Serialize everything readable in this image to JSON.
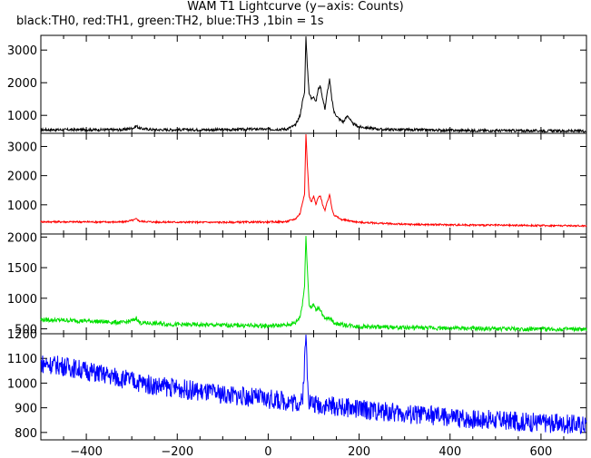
{
  "chart_data": {
    "type": "line",
    "title": "WAM T1 Lightcurve (y−axis: Counts)",
    "subtitle": "black:TH0, red:TH1, green:TH2, blue:TH3 ,1bin = 1s",
    "xlim": [
      -500,
      700
    ],
    "x_ticks": [
      -400,
      -200,
      0,
      200,
      400,
      600
    ],
    "x_tick_labels": [
      "−400",
      "−200",
      "0",
      "200",
      "400",
      "600"
    ],
    "panels": [
      {
        "series": "TH0",
        "color": "#000000",
        "ylim": [
          450,
          3450
        ],
        "y_ticks": [
          1000,
          2000,
          3000
        ],
        "y_tick_labels": [
          "1000",
          "2000",
          "3000"
        ],
        "points": [
          [
            -500,
            560
          ],
          [
            -320,
            560
          ],
          [
            -295,
            620
          ],
          [
            -290,
            680
          ],
          [
            -283,
            600
          ],
          [
            -250,
            560
          ],
          [
            -100,
            560
          ],
          [
            -20,
            580
          ],
          [
            0,
            570
          ],
          [
            40,
            580
          ],
          [
            60,
            700
          ],
          [
            70,
            1000
          ],
          [
            75,
            1400
          ],
          [
            80,
            1700
          ],
          [
            83,
            3450
          ],
          [
            86,
            2500
          ],
          [
            90,
            1700
          ],
          [
            95,
            1500
          ],
          [
            100,
            1600
          ],
          [
            105,
            1400
          ],
          [
            110,
            1800
          ],
          [
            115,
            1900
          ],
          [
            120,
            1500
          ],
          [
            125,
            1200
          ],
          [
            130,
            1700
          ],
          [
            135,
            2100
          ],
          [
            140,
            1500
          ],
          [
            145,
            1100
          ],
          [
            155,
            900
          ],
          [
            165,
            800
          ],
          [
            175,
            1000
          ],
          [
            185,
            750
          ],
          [
            200,
            650
          ],
          [
            250,
            570
          ],
          [
            400,
            540
          ],
          [
            550,
            530
          ],
          [
            700,
            520
          ]
        ]
      },
      {
        "series": "TH1",
        "color": "#ff0000",
        "ylim": [
          0,
          3450
        ],
        "y_ticks": [
          1000,
          2000,
          3000
        ],
        "y_tick_labels": [
          "1000",
          "2000",
          "3000"
        ],
        "points": [
          [
            -500,
            420
          ],
          [
            -320,
            410
          ],
          [
            -295,
            480
          ],
          [
            -290,
            520
          ],
          [
            -283,
            440
          ],
          [
            -250,
            410
          ],
          [
            -100,
            400
          ],
          [
            0,
            410
          ],
          [
            40,
            420
          ],
          [
            60,
            520
          ],
          [
            70,
            700
          ],
          [
            75,
            1050
          ],
          [
            80,
            1400
          ],
          [
            83,
            3450
          ],
          [
            86,
            2400
          ],
          [
            90,
            1300
          ],
          [
            95,
            1100
          ],
          [
            100,
            1300
          ],
          [
            105,
            1000
          ],
          [
            110,
            1250
          ],
          [
            115,
            1300
          ],
          [
            120,
            1000
          ],
          [
            125,
            800
          ],
          [
            130,
            1100
          ],
          [
            135,
            1350
          ],
          [
            140,
            900
          ],
          [
            145,
            650
          ],
          [
            160,
            500
          ],
          [
            200,
            400
          ],
          [
            300,
            330
          ],
          [
            500,
            300
          ],
          [
            700,
            280
          ]
        ]
      },
      {
        "series": "TH2",
        "color": "#00e000",
        "ylim": [
          420,
          2050
        ],
        "y_ticks": [
          500,
          1000,
          1500,
          2000
        ],
        "y_tick_labels": [
          "500",
          "1000",
          "1500",
          "2000"
        ],
        "points": [
          [
            -500,
            650
          ],
          [
            -400,
            630
          ],
          [
            -320,
            600
          ],
          [
            -295,
            640
          ],
          [
            -290,
            680
          ],
          [
            -283,
            600
          ],
          [
            -200,
            570
          ],
          [
            -100,
            560
          ],
          [
            0,
            550
          ],
          [
            40,
            560
          ],
          [
            60,
            600
          ],
          [
            70,
            700
          ],
          [
            75,
            900
          ],
          [
            80,
            1200
          ],
          [
            83,
            2050
          ],
          [
            86,
            1500
          ],
          [
            90,
            900
          ],
          [
            95,
            850
          ],
          [
            100,
            900
          ],
          [
            105,
            800
          ],
          [
            110,
            850
          ],
          [
            115,
            820
          ],
          [
            120,
            720
          ],
          [
            125,
            650
          ],
          [
            135,
            680
          ],
          [
            145,
            600
          ],
          [
            160,
            570
          ],
          [
            200,
            540
          ],
          [
            300,
            520
          ],
          [
            500,
            500
          ],
          [
            700,
            490
          ]
        ]
      },
      {
        "series": "TH3",
        "color": "#0000ff",
        "ylim": [
          770,
          1200
        ],
        "y_ticks": [
          800,
          900,
          1000,
          1100,
          1200
        ],
        "y_tick_labels": [
          "800",
          "900",
          "1000",
          "1100",
          "1200"
        ],
        "points": [
          [
            -500,
            1080
          ],
          [
            -450,
            1070
          ],
          [
            -400,
            1050
          ],
          [
            -350,
            1030
          ],
          [
            -300,
            1010
          ],
          [
            -250,
            990
          ],
          [
            -200,
            980
          ],
          [
            -150,
            965
          ],
          [
            -100,
            955
          ],
          [
            -50,
            945
          ],
          [
            0,
            935
          ],
          [
            50,
            925
          ],
          [
            75,
            920
          ],
          [
            80,
            1080
          ],
          [
            83,
            1200
          ],
          [
            86,
            1050
          ],
          [
            90,
            930
          ],
          [
            100,
            915
          ],
          [
            150,
            905
          ],
          [
            200,
            895
          ],
          [
            250,
            885
          ],
          [
            300,
            875
          ],
          [
            350,
            870
          ],
          [
            400,
            860
          ],
          [
            450,
            855
          ],
          [
            500,
            850
          ],
          [
            550,
            845
          ],
          [
            600,
            840
          ],
          [
            650,
            835
          ],
          [
            700,
            830
          ]
        ]
      }
    ]
  }
}
